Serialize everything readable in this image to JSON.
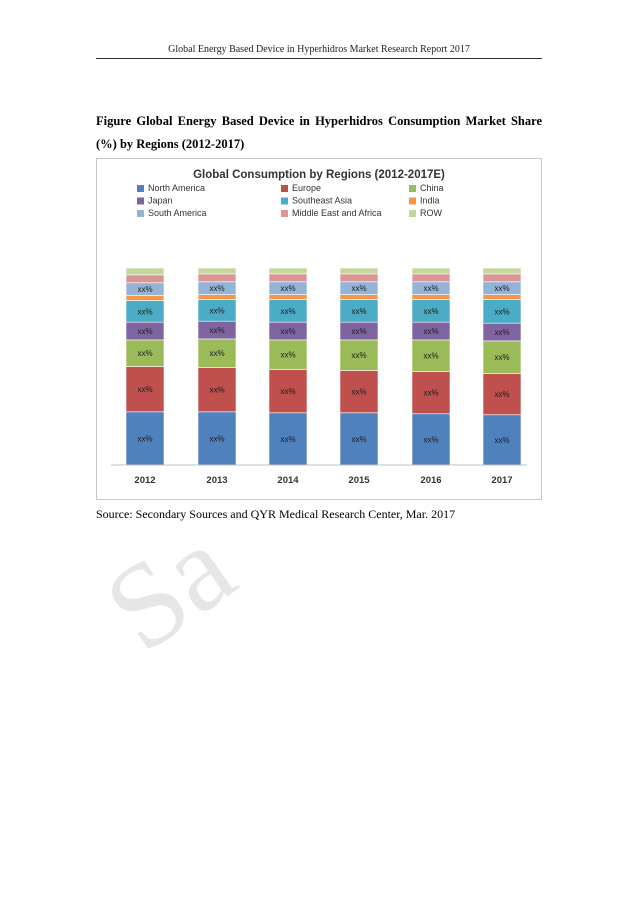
{
  "header": {
    "title": "Global Energy Based Device in Hyperhidros Market Research Report 2017"
  },
  "figure": {
    "caption": "Figure Global Energy Based Device in Hyperhidros Consumption Market Share (%) by Regions (2012-2017)"
  },
  "source": "Source: Secondary Sources and QYR Medical Research Center, Mar. 2017",
  "watermark": {
    "text": "Sa"
  },
  "chart_data": {
    "type": "bar",
    "stacked": true,
    "title": "Global Consumption by Regions (2012-2017E)",
    "xlabel": "",
    "ylabel": "",
    "categories": [
      "2012",
      "2013",
      "2014",
      "2015",
      "2016",
      "2017"
    ],
    "ylim": [
      0,
      100
    ],
    "grid": false,
    "legend_position": "top",
    "segment_label": "xx%",
    "series": [
      {
        "name": "North America",
        "color": "#4f81bd",
        "values": [
          27,
          27,
          26.5,
          26.5,
          26,
          25.5
        ],
        "labeled": true
      },
      {
        "name": "Europe",
        "color": "#c0504d",
        "values": [
          23,
          22.5,
          22,
          21.5,
          21.5,
          21
        ],
        "labeled": true
      },
      {
        "name": "China",
        "color": "#9bbb59",
        "values": [
          13.5,
          14.5,
          15,
          15.5,
          16,
          16.5
        ],
        "labeled": true
      },
      {
        "name": "Japan",
        "color": "#8064a2",
        "values": [
          9,
          9,
          9,
          9,
          9,
          9
        ],
        "labeled": true
      },
      {
        "name": "Southeast Asia",
        "color": "#4bacc6",
        "values": [
          11,
          11,
          11.5,
          11.5,
          11.5,
          12
        ],
        "labeled": true
      },
      {
        "name": "India",
        "color": "#f79646",
        "values": [
          2.5,
          2.5,
          2.5,
          2.5,
          2.5,
          2.5
        ],
        "labeled": false
      },
      {
        "name": "South America",
        "color": "#95b3d7",
        "values": [
          6.5,
          6.5,
          6.5,
          6.5,
          6.5,
          6.5
        ],
        "labeled": true
      },
      {
        "name": "Middle East and Africa",
        "color": "#da9694",
        "values": [
          4,
          4,
          4,
          4,
          4,
          4
        ],
        "labeled": false
      },
      {
        "name": "ROW",
        "color": "#c3d69b",
        "values": [
          3.5,
          3,
          3,
          3,
          3,
          3
        ],
        "labeled": false
      }
    ]
  }
}
